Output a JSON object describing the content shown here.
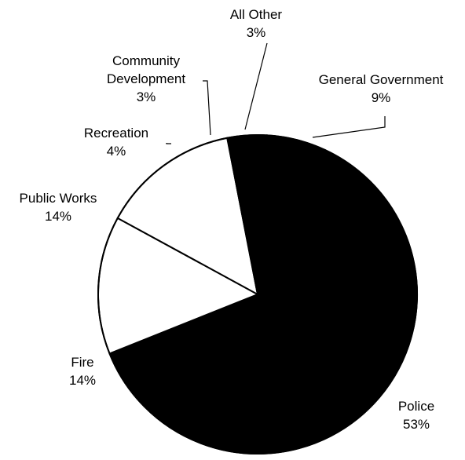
{
  "chart_data": {
    "type": "pie",
    "slices": [
      {
        "label_lines": [
          "General Government"
        ],
        "value_label": "9%",
        "value": 9
      },
      {
        "label_lines": [
          "Police"
        ],
        "value_label": "53%",
        "value": 53
      },
      {
        "label_lines": [
          "Fire"
        ],
        "value_label": "14%",
        "value": 14
      },
      {
        "label_lines": [
          "Public Works"
        ],
        "value_label": "14%",
        "value": 14
      },
      {
        "label_lines": [
          "Recreation"
        ],
        "value_label": "4%",
        "value": 4
      },
      {
        "label_lines": [
          "Community",
          "Development"
        ],
        "value_label": "3%",
        "value": 3
      },
      {
        "label_lines": [
          "All Other"
        ],
        "value_label": "3%",
        "value": 3
      }
    ],
    "colors": {
      "background": "#ffffff",
      "dark": "#000000",
      "light": "#ffffff",
      "outline": "#000000"
    }
  }
}
